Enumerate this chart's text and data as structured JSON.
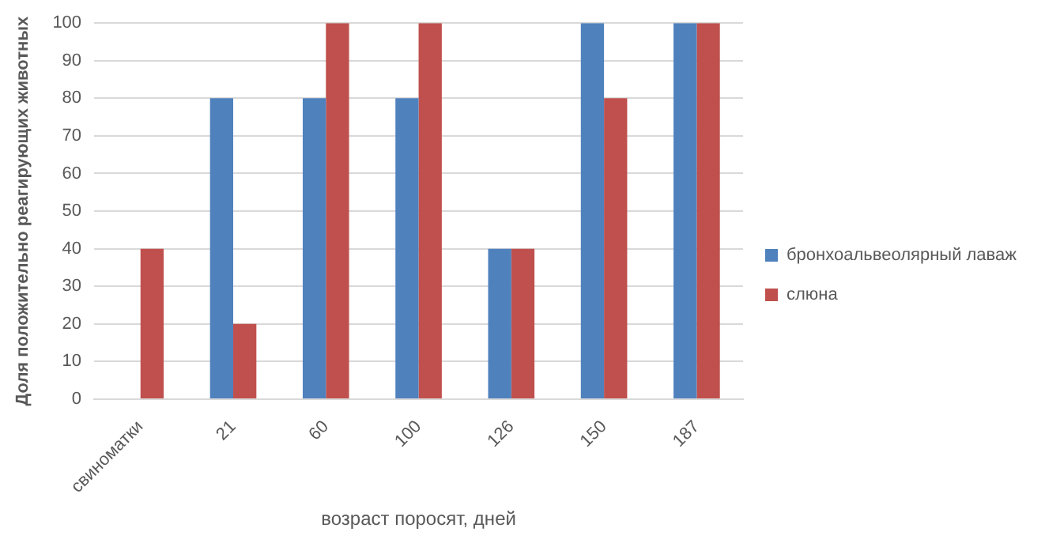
{
  "chart_data": {
    "type": "bar",
    "xlabel": "возраст поросят, дней",
    "ylabel": "Доля положительно реагирующих животных",
    "categories": [
      "свиноматки",
      "21",
      "60",
      "100",
      "126",
      "150",
      "187"
    ],
    "series": [
      {
        "name": "бронхоальвеолярный лаваж",
        "color": "#4f81bd",
        "values": [
          0,
          80,
          80,
          80,
          40,
          100,
          100
        ]
      },
      {
        "name": "слюна",
        "color": "#c0504d",
        "values": [
          40,
          20,
          100,
          100,
          40,
          80,
          100
        ]
      }
    ],
    "ylim": [
      0,
      100
    ],
    "yticks": [
      0,
      10,
      20,
      30,
      40,
      50,
      60,
      70,
      80,
      90,
      100
    ],
    "grid": "y",
    "legend": "right"
  }
}
